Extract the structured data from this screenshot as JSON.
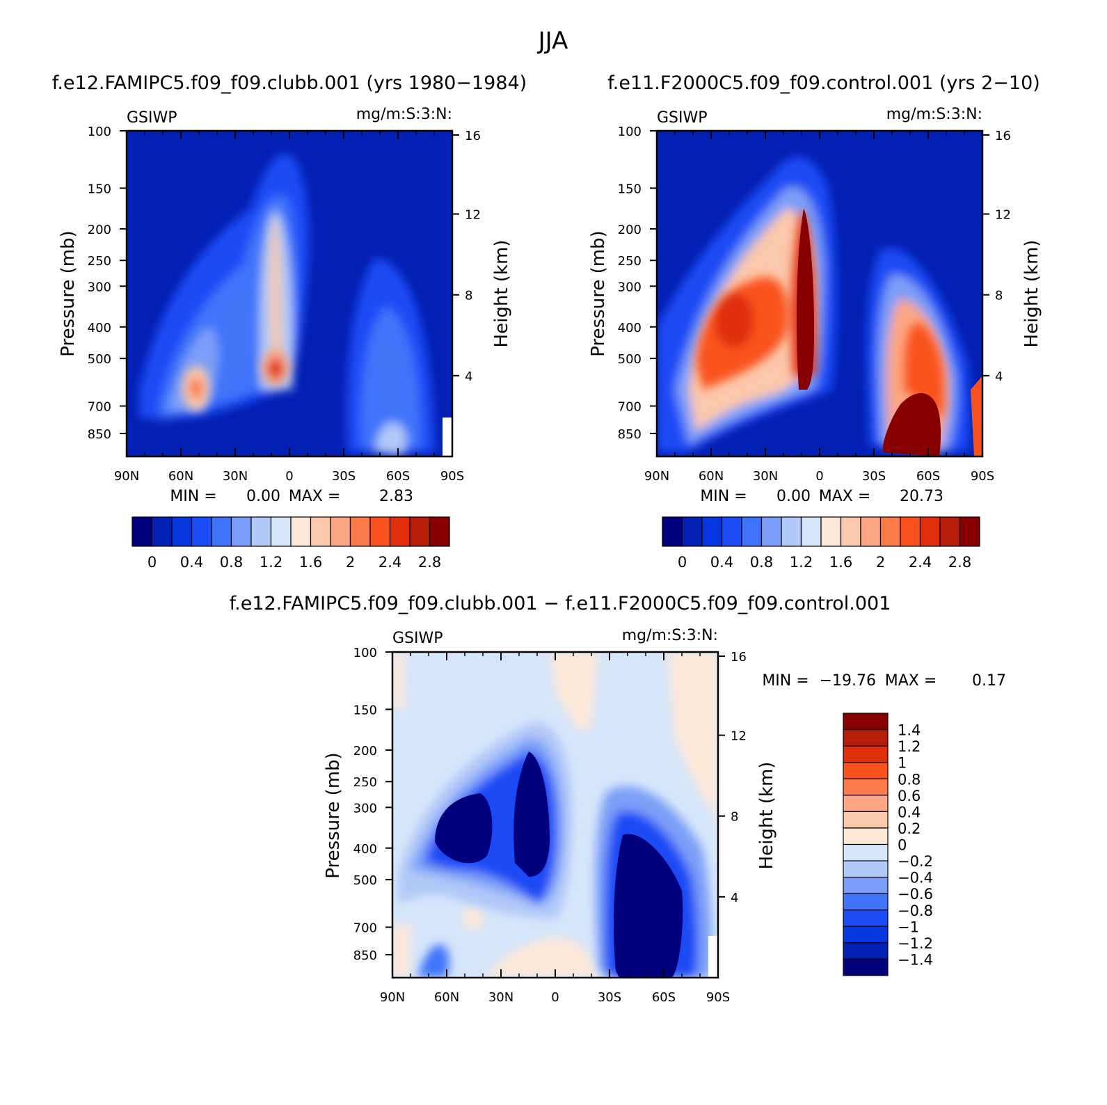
{
  "title": "JJA",
  "chart_data": [
    {
      "type": "contour",
      "id": "p1",
      "title": "f.e12.FAMIPC5.f09_f09.clubb.001 (yrs 1980−1984)",
      "variable": "GSIWP",
      "units": "mg/m:S:3:N:",
      "xlabel": "",
      "ylabel": "Pressure (mb)",
      "ylabel_right": "Height (km)",
      "x_ticks": [
        "90N",
        "60N",
        "30N",
        "0",
        "30S",
        "60S",
        "90S"
      ],
      "y_ticks": [
        "100",
        "150",
        "200",
        "250",
        "300",
        "400",
        "500",
        "700",
        "850"
      ],
      "height_ticks": [
        "16",
        "12",
        "8",
        "4"
      ],
      "min_label": "MIN =",
      "min_value": "0.00",
      "max_label": "MAX =",
      "max_value": "2.83",
      "colorbar_labels": [
        "0",
        "0.4",
        "0.8",
        "1.2",
        "1.6",
        "2",
        "2.4",
        "2.8"
      ]
    },
    {
      "type": "contour",
      "id": "p2",
      "title": "f.e11.F2000C5.f09_f09.control.001 (yrs 2−10)",
      "variable": "GSIWP",
      "units": "mg/m:S:3:N:",
      "xlabel": "",
      "ylabel": "Pressure (mb)",
      "ylabel_right": "Height (km)",
      "x_ticks": [
        "90N",
        "60N",
        "30N",
        "0",
        "30S",
        "60S",
        "90S"
      ],
      "y_ticks": [
        "100",
        "150",
        "200",
        "250",
        "300",
        "400",
        "500",
        "700",
        "850"
      ],
      "height_ticks": [
        "16",
        "12",
        "8",
        "4"
      ],
      "min_label": "MIN =",
      "min_value": "0.00",
      "max_label": "MAX =",
      "max_value": "20.73",
      "colorbar_labels": [
        "0",
        "0.4",
        "0.8",
        "1.2",
        "1.6",
        "2",
        "2.4",
        "2.8"
      ]
    },
    {
      "type": "contour",
      "id": "p3",
      "title": "f.e12.FAMIPC5.f09_f09.clubb.001 − f.e11.F2000C5.f09_f09.control.001",
      "variable": "GSIWP",
      "units": "mg/m:S:3:N:",
      "xlabel": "",
      "ylabel": "Pressure (mb)",
      "ylabel_right": "Height (km)",
      "x_ticks": [
        "90N",
        "60N",
        "30N",
        "0",
        "30S",
        "60S",
        "90S"
      ],
      "y_ticks": [
        "100",
        "150",
        "200",
        "250",
        "300",
        "400",
        "500",
        "700",
        "850"
      ],
      "height_ticks": [
        "16",
        "12",
        "8",
        "4"
      ],
      "min_label": "MIN =",
      "min_value": "−19.76",
      "max_label": "MAX =",
      "max_value": "0.17",
      "colorbar_labels": [
        "1.4",
        "1.2",
        "1",
        "0.8",
        "0.6",
        "0.4",
        "0.2",
        "0",
        "−0.2",
        "−0.4",
        "−0.6",
        "−0.8",
        "−1",
        "−1.2",
        "−1.4"
      ]
    }
  ],
  "colors": {
    "seq": [
      "#00007f",
      "#0320b4",
      "#0636dd",
      "#1b4cf5",
      "#3f74fa",
      "#7b9ff8",
      "#b1c8f8",
      "#d6e6fa",
      "#fde8d8",
      "#fcc8ac",
      "#fca684",
      "#fb7a4a",
      "#f9521e",
      "#e02f0a",
      "#b51d08",
      "#860000"
    ],
    "diff": [
      "#860000",
      "#b51d08",
      "#e02f0a",
      "#f9521e",
      "#fb7a4a",
      "#fca684",
      "#fcc8ac",
      "#fde8d8",
      "#d6e6fa",
      "#b1c8f8",
      "#7b9ff8",
      "#3f74fa",
      "#1b4cf5",
      "#0636dd",
      "#0320b4",
      "#00007f"
    ]
  }
}
